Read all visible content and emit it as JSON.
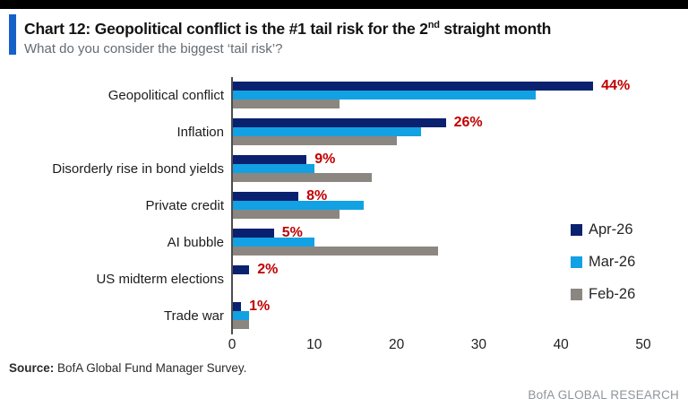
{
  "header": {
    "title_prefix": "Chart 12: Geopolitical conflict is the #1 tail risk for the 2",
    "title_sup": "nd",
    "title_suffix": " straight month",
    "subtitle": "What do you consider the biggest ‘tail risk’?"
  },
  "chart_data": {
    "type": "bar",
    "orientation": "horizontal",
    "title": "Chart 12: Geopolitical conflict is the #1 tail risk for the 2nd straight month",
    "subtitle": "What do you consider the biggest ‘tail risk’?",
    "categories": [
      "Geopolitical conflict",
      "Inflation",
      "Disorderly rise in bond yields",
      "Private credit",
      "AI bubble",
      "US midterm elections",
      "Trade war"
    ],
    "series": [
      {
        "name": "Apr-26",
        "color": "#0A2170",
        "values": [
          44,
          26,
          9,
          8,
          5,
          2,
          1
        ]
      },
      {
        "name": "Mar-26",
        "color": "#12A1E3",
        "values": [
          37,
          23,
          10,
          16,
          10,
          0,
          2
        ]
      },
      {
        "name": "Feb-26",
        "color": "#8C8680",
        "values": [
          13,
          20,
          17,
          13,
          25,
          0,
          2
        ]
      }
    ],
    "value_labels": [
      "44%",
      "26%",
      "9%",
      "8%",
      "5%",
      "2%",
      "1%"
    ],
    "value_label_color": "#C00000",
    "x_ticks": [
      0,
      10,
      20,
      30,
      40,
      50
    ],
    "xlim": [
      0,
      50
    ],
    "grid": false,
    "legend_position": "right"
  },
  "footer": {
    "source_label": "Source:",
    "source_text": " BofA Global Fund Manager Survey.",
    "brand": "BofA GLOBAL RESEARCH"
  },
  "colors": {
    "top_bar": "#000000",
    "accent_blue": "#1661C9",
    "axis_line": "#4D4D4D",
    "navy": "#0A2170",
    "light_blue": "#12A1E3",
    "gray": "#8C8680",
    "red": "#C00000"
  }
}
